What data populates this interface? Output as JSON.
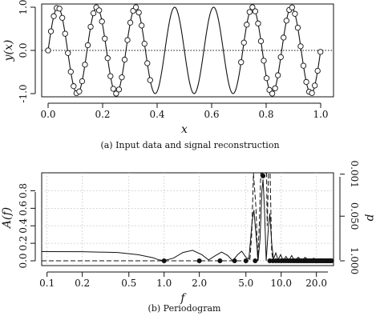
{
  "chart_data": [
    {
      "type": "line",
      "caption": "(a) Input data and signal reconstruction",
      "xlabel": "x",
      "ylabel": "y(x)",
      "xlim": [
        0,
        1
      ],
      "ylim": [
        -1,
        1
      ],
      "xticks": [
        0.0,
        0.2,
        0.4,
        0.6,
        0.8,
        1.0
      ],
      "xtick_labels": [
        "0.0",
        "0.2",
        "0.4",
        "0.6",
        "0.8",
        "1.0"
      ],
      "yticks": [
        -1,
        0,
        1
      ],
      "ytick_labels": [
        "-1.0",
        "0.0",
        "1.0"
      ],
      "reference_line": {
        "y": 0,
        "style": "dotted"
      },
      "reconstruction": {
        "function": "sin",
        "frequency": 7,
        "amplitude": 1,
        "x_range": [
          0,
          1
        ],
        "style": "solid"
      },
      "samples": {
        "marker": "open-circle",
        "segments": [
          {
            "x_start": 0.0,
            "x_end": 0.375,
            "step": 0.0104
          },
          {
            "x_start": 0.708,
            "x_end": 1.0,
            "step": 0.0104
          }
        ]
      },
      "grid": false
    },
    {
      "type": "line",
      "caption": "(b) Periodogram",
      "xlabel": "f",
      "ylabel": "A(f)",
      "ylabel_right": "p",
      "xscale": "log",
      "xlim": [
        0.09,
        28
      ],
      "ylim": [
        -0.03,
        1.0
      ],
      "xticks": [
        0.1,
        0.2,
        0.5,
        1.0,
        2.0,
        5.0,
        10.0,
        20.0
      ],
      "xtick_labels": [
        "0.1",
        "0.2",
        "0.5",
        "1.0",
        "2.0",
        "5.0",
        "10.0",
        "20.0"
      ],
      "yticks": [
        0.0,
        0.2,
        0.4,
        0.6,
        0.8
      ],
      "ytick_labels": [
        "0.0",
        "0.2",
        "0.4",
        "0.6",
        "0.8"
      ],
      "y2ticks_at_left_units": [
        0.0,
        0.51,
        0.99
      ],
      "y2tick_labels": [
        "1.000",
        "0.050",
        "0.001"
      ],
      "grid": true,
      "series": [
        {
          "style": "solid",
          "points": [
            [
              0.09,
              0.105
            ],
            [
              0.2,
              0.104
            ],
            [
              0.4,
              0.095
            ],
            [
              0.6,
              0.07
            ],
            [
              0.8,
              0.035
            ],
            [
              0.9,
              0.012
            ],
            [
              1.0,
              0.002
            ],
            [
              1.2,
              0.03
            ],
            [
              1.45,
              0.095
            ],
            [
              1.75,
              0.12
            ],
            [
              2.1,
              0.07
            ],
            [
              2.4,
              0.01
            ],
            [
              2.75,
              0.06
            ],
            [
              3.1,
              0.1
            ],
            [
              3.5,
              0.06
            ],
            [
              3.85,
              0.0
            ],
            [
              4.25,
              0.07
            ],
            [
              4.6,
              0.11
            ],
            [
              5.0,
              0.04
            ],
            [
              5.3,
              0.02
            ],
            [
              5.65,
              0.45
            ],
            [
              5.85,
              0.58
            ],
            [
              6.1,
              0.3
            ],
            [
              6.35,
              0.0
            ],
            [
              6.6,
              0.25
            ],
            [
              6.85,
              0.8
            ],
            [
              7.0,
              0.93
            ],
            [
              7.2,
              0.6
            ],
            [
              7.45,
              0.0
            ],
            [
              7.8,
              0.4
            ],
            [
              8.0,
              0.54
            ],
            [
              8.3,
              0.2
            ],
            [
              8.6,
              0.02
            ],
            [
              9.0,
              0.09
            ],
            [
              9.4,
              0.01
            ],
            [
              9.9,
              0.07
            ],
            [
              10.4,
              0.0
            ],
            [
              11.0,
              0.05
            ],
            [
              11.6,
              0.0
            ],
            [
              12.3,
              0.06
            ],
            [
              13.0,
              0.0
            ],
            [
              14.0,
              0.04
            ],
            [
              15.0,
              0.0
            ],
            [
              16.0,
              0.04
            ],
            [
              17.5,
              0.0
            ],
            [
              19.0,
              0.03
            ],
            [
              20.5,
              0.0
            ],
            [
              22.0,
              0.025
            ],
            [
              24.0,
              0.0
            ],
            [
              26.0,
              0.02
            ],
            [
              28.0,
              0.01
            ]
          ]
        },
        {
          "style": "dashed",
          "points": [
            [
              0.09,
              0.0
            ],
            [
              5.4,
              0.0
            ],
            [
              5.6,
              0.3
            ],
            [
              5.8,
              1.0
            ],
            [
              6.1,
              0.6
            ],
            [
              6.3,
              0.0
            ],
            [
              6.5,
              0.4
            ],
            [
              6.7,
              1.0
            ],
            [
              7.5,
              1.0
            ],
            [
              7.6,
              0.4
            ],
            [
              7.8,
              1.0
            ],
            [
              8.05,
              1.0
            ],
            [
              8.3,
              0.1
            ],
            [
              8.55,
              0.0
            ],
            [
              28.0,
              0.0
            ]
          ]
        }
      ],
      "points": {
        "marker": "filled-circle",
        "x": [
          1.0,
          2.0,
          3.0,
          4.0,
          5.0,
          6.0,
          7.0,
          8.0,
          8.5,
          9.0,
          9.5,
          10.0,
          10.5,
          11.0,
          11.5,
          12.0,
          12.5,
          13.0,
          13.5,
          14.0,
          14.5,
          15.0,
          15.5,
          16.0,
          16.5,
          17.0,
          17.5,
          18.0,
          18.5,
          19.0,
          19.5,
          20.0,
          20.5,
          21.0,
          21.5,
          22.0,
          22.5,
          23.0,
          23.5,
          24.0,
          24.5,
          25.0,
          25.5,
          26.0,
          26.5,
          27.0
        ],
        "y": [
          0.0,
          0.0,
          0.0,
          0.0,
          0.0,
          0.0,
          0.97,
          0.0,
          0.0,
          0.0,
          0.0,
          0.0,
          0.0,
          0.0,
          0.0,
          0.0,
          0.0,
          0.0,
          0.0,
          0.0,
          0.0,
          0.0,
          0.0,
          0.0,
          0.0,
          0.0,
          0.0,
          0.0,
          0.0,
          0.0,
          0.0,
          0.0,
          0.0,
          0.0,
          0.0,
          0.0,
          0.0,
          0.0,
          0.0,
          0.0,
          0.0,
          0.0,
          0.0,
          0.0,
          0.0,
          0.0
        ]
      }
    }
  ]
}
